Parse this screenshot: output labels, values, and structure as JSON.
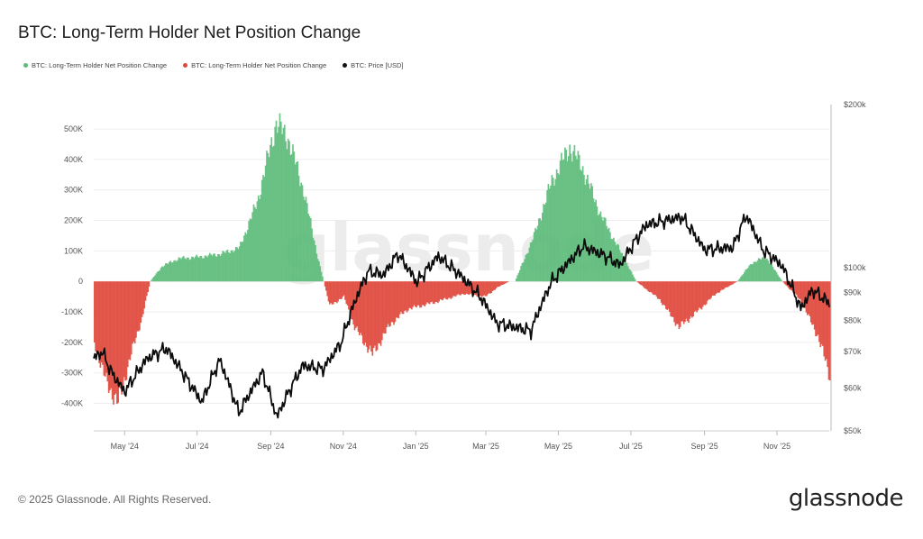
{
  "title": "BTC: Long-Term Holder Net Position Change",
  "legend": [
    {
      "label": "BTC: Long-Term Holder Net Position Change",
      "color": "#5dbb7a"
    },
    {
      "label": "BTC: Long-Term Holder Net Position Change",
      "color": "#e0483c"
    },
    {
      "label": "BTC: Price [USD]",
      "color": "#111111"
    }
  ],
  "footer": {
    "copyright": "© 2025 Glassnode. All Rights Reserved.",
    "brand": "glassnode"
  },
  "watermark": "glassnode",
  "chart_data": {
    "type": "bar+line",
    "x_range": [
      "2024-04-05",
      "2025-12-15"
    ],
    "x_ticks": [
      "May '24",
      "Jul '24",
      "Sep '24",
      "Nov '24",
      "Jan '25",
      "Mar '25",
      "May '25",
      "Jul '25",
      "Sep '25",
      "Nov '25"
    ],
    "left_axis": {
      "ticks": [
        "500K",
        "400K",
        "300K",
        "200K",
        "100K",
        "0",
        "-100K",
        "-200K",
        "-300K",
        "-400K"
      ],
      "range": [
        -490000,
        580000
      ]
    },
    "right_axis": {
      "scale": "log",
      "ticks": [
        "$200k",
        "$100k",
        "$90k",
        "$80k",
        "$70k",
        "$60k",
        "$50k"
      ],
      "range": [
        50000,
        200000
      ]
    },
    "net_position_change_keypoints": [
      [
        "2024-04-05",
        -200000
      ],
      [
        "2024-04-15",
        -330000
      ],
      [
        "2024-04-25",
        -400000
      ],
      [
        "2024-05-05",
        -250000
      ],
      [
        "2024-05-15",
        -120000
      ],
      [
        "2024-05-22",
        0
      ],
      [
        "2024-06-01",
        50000
      ],
      [
        "2024-06-15",
        75000
      ],
      [
        "2024-07-01",
        80000
      ],
      [
        "2024-07-20",
        90000
      ],
      [
        "2024-08-05",
        110000
      ],
      [
        "2024-08-20",
        260000
      ],
      [
        "2024-09-05",
        520000
      ],
      [
        "2024-09-15",
        470000
      ],
      [
        "2024-09-28",
        300000
      ],
      [
        "2024-10-10",
        80000
      ],
      [
        "2024-10-20",
        -80000
      ],
      [
        "2024-11-01",
        -50000
      ],
      [
        "2024-11-10",
        -150000
      ],
      [
        "2024-11-25",
        -240000
      ],
      [
        "2024-12-10",
        -140000
      ],
      [
        "2024-12-25",
        -90000
      ],
      [
        "2025-01-15",
        -70000
      ],
      [
        "2025-02-10",
        -40000
      ],
      [
        "2025-02-28",
        -50000
      ],
      [
        "2025-03-10",
        -20000
      ],
      [
        "2025-03-20",
        0
      ],
      [
        "2025-03-25",
        0
      ],
      [
        "2025-04-10",
        150000
      ],
      [
        "2025-04-25",
        330000
      ],
      [
        "2025-05-10",
        440000
      ],
      [
        "2025-05-20",
        380000
      ],
      [
        "2025-06-05",
        220000
      ],
      [
        "2025-06-20",
        110000
      ],
      [
        "2025-07-05",
        0
      ],
      [
        "2025-07-25",
        -60000
      ],
      [
        "2025-08-10",
        -150000
      ],
      [
        "2025-08-25",
        -100000
      ],
      [
        "2025-09-10",
        -40000
      ],
      [
        "2025-09-28",
        0
      ],
      [
        "2025-10-10",
        60000
      ],
      [
        "2025-10-22",
        80000
      ],
      [
        "2025-11-05",
        0
      ],
      [
        "2025-11-20",
        -60000
      ],
      [
        "2025-12-05",
        -180000
      ],
      [
        "2025-12-15",
        -310000
      ]
    ],
    "price_keypoints": [
      [
        "2024-04-05",
        68000
      ],
      [
        "2024-04-12",
        70000
      ],
      [
        "2024-04-20",
        64000
      ],
      [
        "2024-05-01",
        59000
      ],
      [
        "2024-05-20",
        68000
      ],
      [
        "2024-06-05",
        71000
      ],
      [
        "2024-06-25",
        61000
      ],
      [
        "2024-07-05",
        56500
      ],
      [
        "2024-07-20",
        67500
      ],
      [
        "2024-08-05",
        54000
      ],
      [
        "2024-08-25",
        64000
      ],
      [
        "2024-09-06",
        53000
      ],
      [
        "2024-09-28",
        66000
      ],
      [
        "2024-10-15",
        65000
      ],
      [
        "2024-10-30",
        72500
      ],
      [
        "2024-11-12",
        88000
      ],
      [
        "2024-11-22",
        98500
      ],
      [
        "2024-12-05",
        97000
      ],
      [
        "2024-12-17",
        106000
      ],
      [
        "2025-01-02",
        94000
      ],
      [
        "2025-01-20",
        105000
      ],
      [
        "2025-02-05",
        98000
      ],
      [
        "2025-02-25",
        88000
      ],
      [
        "2025-03-10",
        79000
      ],
      [
        "2025-04-08",
        76500
      ],
      [
        "2025-04-25",
        94000
      ],
      [
        "2025-05-22",
        109500
      ],
      [
        "2025-06-10",
        105000
      ],
      [
        "2025-06-22",
        101000
      ],
      [
        "2025-07-14",
        120000
      ],
      [
        "2025-08-13",
        124000
      ],
      [
        "2025-09-01",
        108000
      ],
      [
        "2025-09-25",
        109000
      ],
      [
        "2025-10-06",
        125000
      ],
      [
        "2025-10-20",
        108000
      ],
      [
        "2025-11-05",
        101000
      ],
      [
        "2025-11-21",
        84000
      ],
      [
        "2025-12-01",
        91000
      ],
      [
        "2025-12-15",
        86000
      ]
    ]
  }
}
